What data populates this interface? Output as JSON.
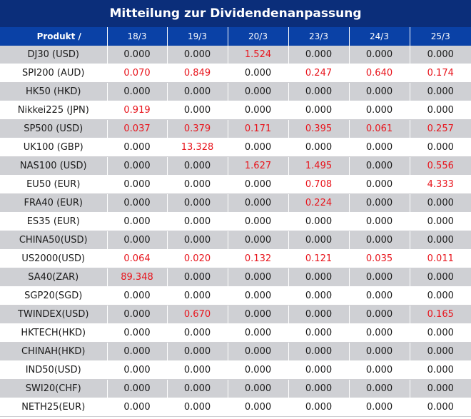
{
  "title": "Mitteilung zur Dividendenanpassung",
  "columns": [
    "Produkt /",
    "18/3",
    "19/3",
    "20/3",
    "23/3",
    "24/3",
    "25/3"
  ],
  "colors": {
    "header_dark": "#0b2e7a",
    "header_blue": "#0a41a6",
    "stripe": "#cfd0d4",
    "positive_value": "#e8141c"
  },
  "rows": [
    {
      "product": "DJ30 (USD)",
      "values": [
        "0.000",
        "0.000",
        "1.524",
        "0.000",
        "0.000",
        "0.000"
      ]
    },
    {
      "product": "SPI200 (AUD)",
      "values": [
        "0.070",
        "0.849",
        "0.000",
        "0.247",
        "0.640",
        "0.174"
      ]
    },
    {
      "product": "HK50 (HKD)",
      "values": [
        "0.000",
        "0.000",
        "0.000",
        "0.000",
        "0.000",
        "0.000"
      ]
    },
    {
      "product": "Nikkei225 (JPN)",
      "values": [
        "0.919",
        "0.000",
        "0.000",
        "0.000",
        "0.000",
        "0.000"
      ]
    },
    {
      "product": "SP500 (USD)",
      "values": [
        "0.037",
        "0.379",
        "0.171",
        "0.395",
        "0.061",
        "0.257"
      ]
    },
    {
      "product": "UK100 (GBP)",
      "values": [
        "0.000",
        "13.328",
        "0.000",
        "0.000",
        "0.000",
        "0.000"
      ]
    },
    {
      "product": "NAS100 (USD)",
      "values": [
        "0.000",
        "0.000",
        "1.627",
        "1.495",
        "0.000",
        "0.556"
      ]
    },
    {
      "product": "EU50 (EUR)",
      "values": [
        "0.000",
        "0.000",
        "0.000",
        "0.708",
        "0.000",
        "4.333"
      ]
    },
    {
      "product": "FRA40 (EUR)",
      "values": [
        "0.000",
        "0.000",
        "0.000",
        "0.224",
        "0.000",
        "0.000"
      ]
    },
    {
      "product": "ES35 (EUR)",
      "values": [
        "0.000",
        "0.000",
        "0.000",
        "0.000",
        "0.000",
        "0.000"
      ]
    },
    {
      "product": "CHINA50(USD)",
      "values": [
        "0.000",
        "0.000",
        "0.000",
        "0.000",
        "0.000",
        "0.000"
      ]
    },
    {
      "product": "US2000(USD)",
      "values": [
        "0.064",
        "0.020",
        "0.132",
        "0.121",
        "0.035",
        "0.011"
      ]
    },
    {
      "product": "SA40(ZAR)",
      "values": [
        "89.348",
        "0.000",
        "0.000",
        "0.000",
        "0.000",
        "0.000"
      ]
    },
    {
      "product": "SGP20(SGD)",
      "values": [
        "0.000",
        "0.000",
        "0.000",
        "0.000",
        "0.000",
        "0.000"
      ]
    },
    {
      "product": "TWINDEX(USD)",
      "values": [
        "0.000",
        "0.670",
        "0.000",
        "0.000",
        "0.000",
        "0.165"
      ]
    },
    {
      "product": "HKTECH(HKD)",
      "values": [
        "0.000",
        "0.000",
        "0.000",
        "0.000",
        "0.000",
        "0.000"
      ]
    },
    {
      "product": "CHINAH(HKD)",
      "values": [
        "0.000",
        "0.000",
        "0.000",
        "0.000",
        "0.000",
        "0.000"
      ]
    },
    {
      "product": "IND50(USD)",
      "values": [
        "0.000",
        "0.000",
        "0.000",
        "0.000",
        "0.000",
        "0.000"
      ]
    },
    {
      "product": "SWI20(CHF)",
      "values": [
        "0.000",
        "0.000",
        "0.000",
        "0.000",
        "0.000",
        "0.000"
      ]
    },
    {
      "product": "NETH25(EUR)",
      "values": [
        "0.000",
        "0.000",
        "0.000",
        "0.000",
        "0.000",
        "0.000"
      ]
    }
  ]
}
